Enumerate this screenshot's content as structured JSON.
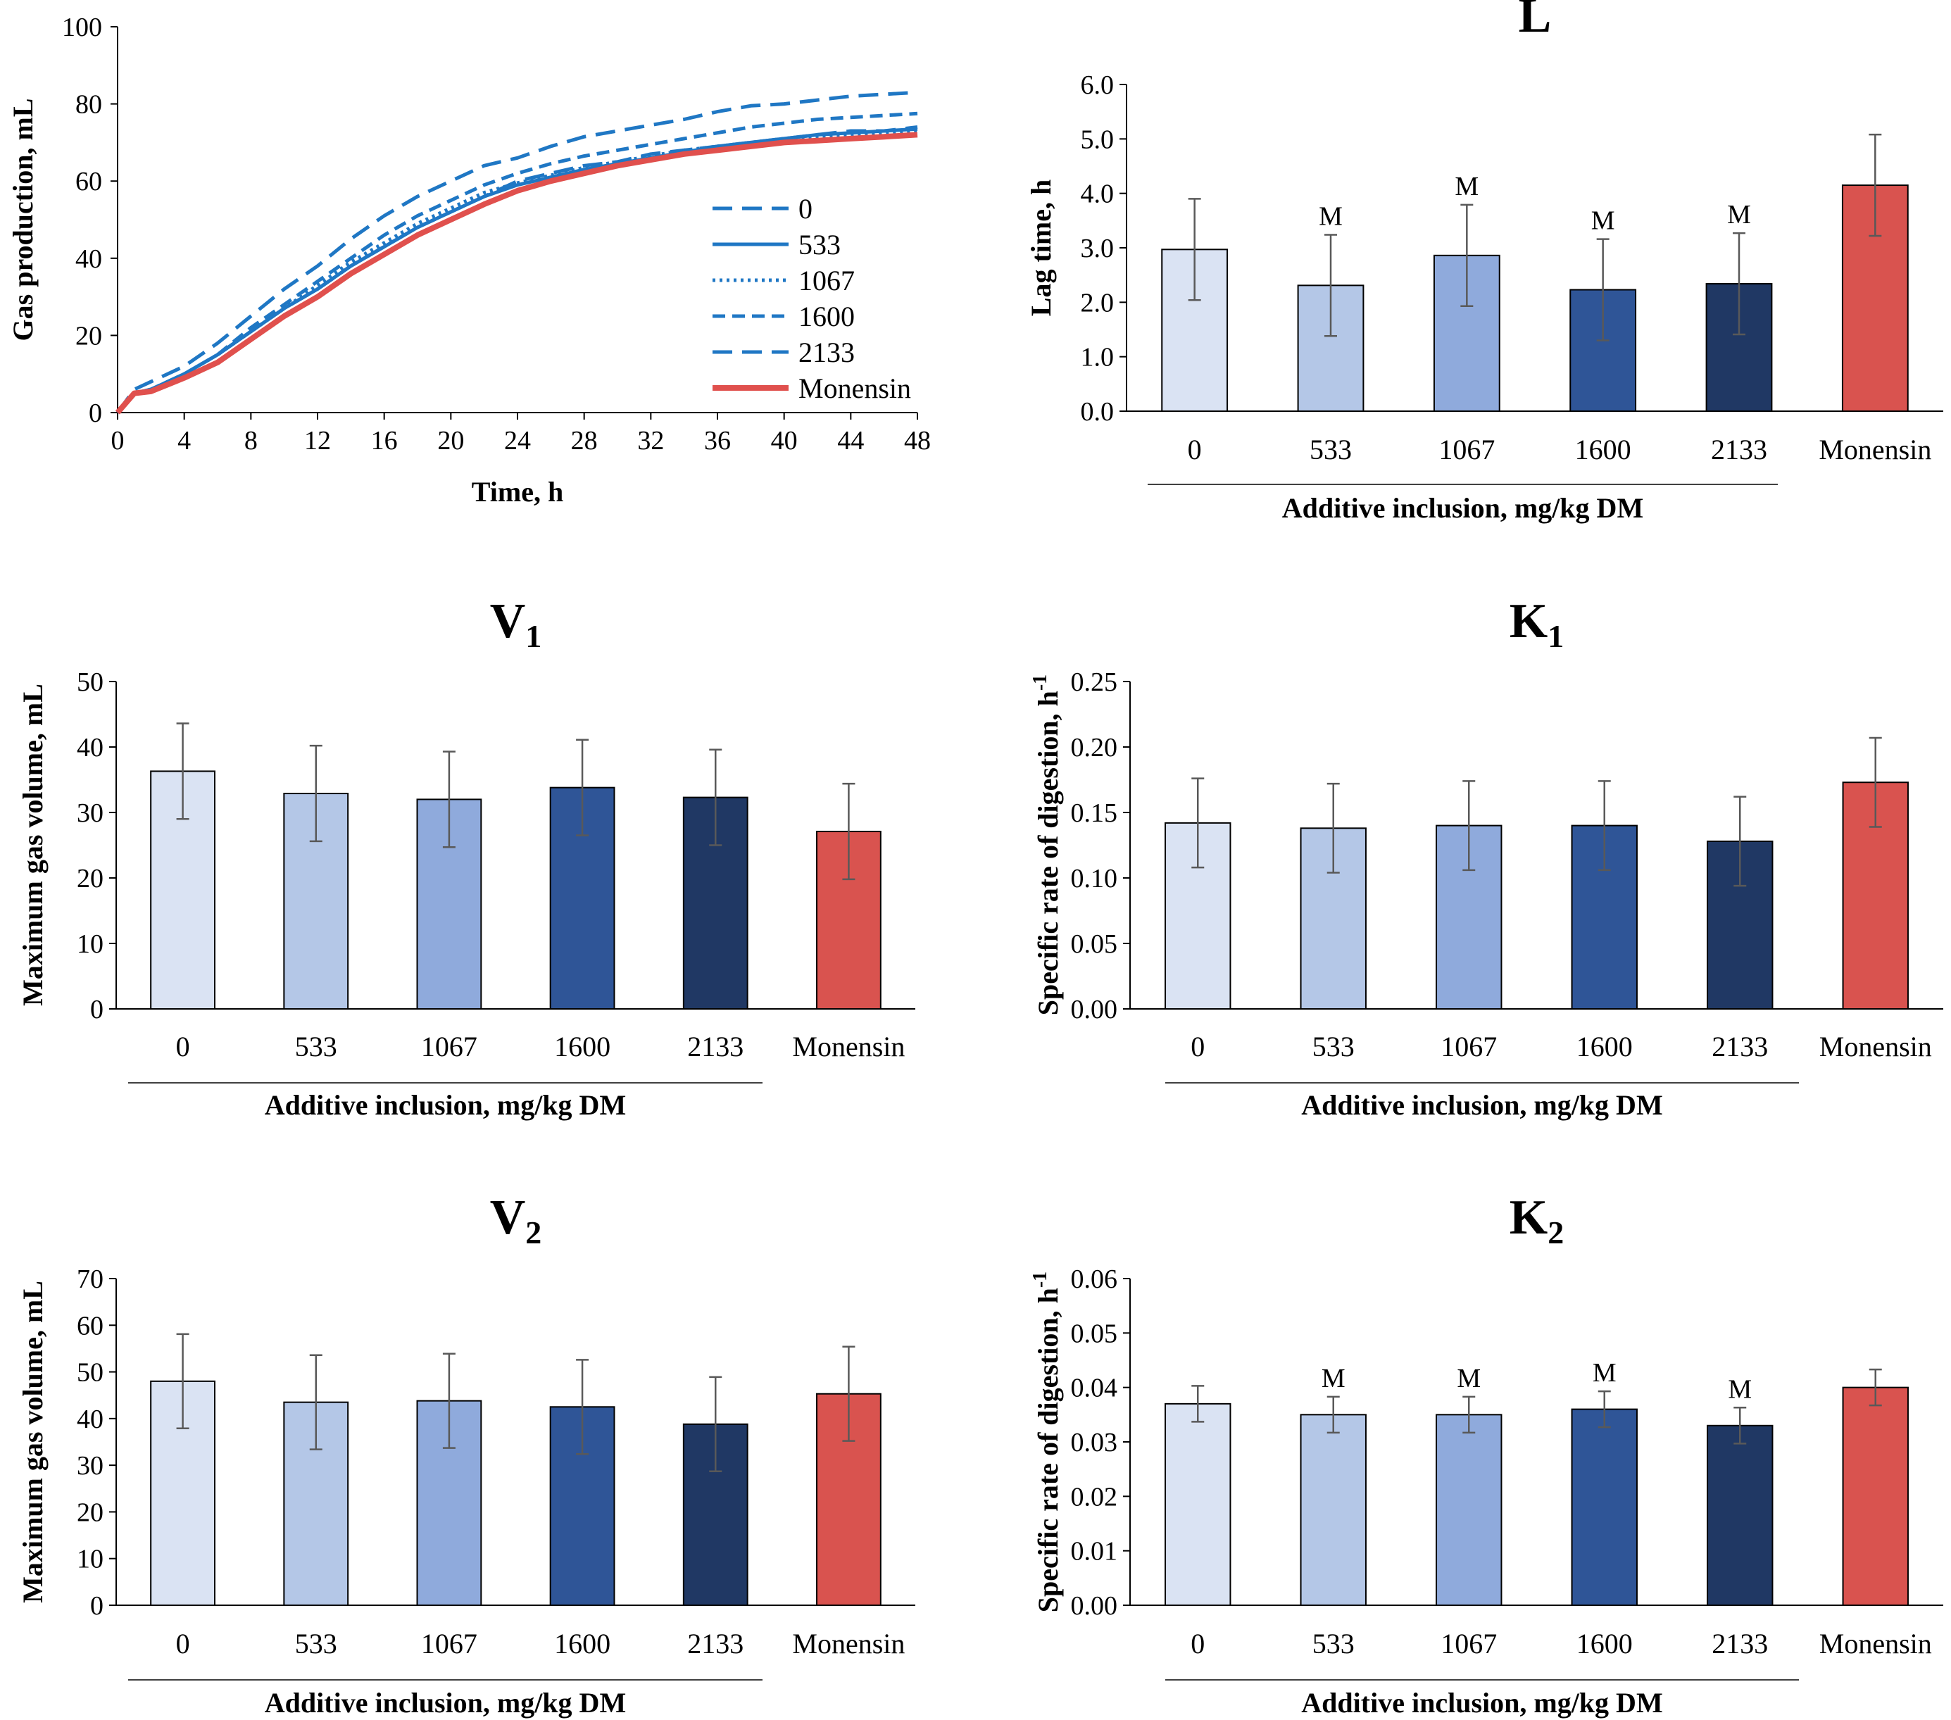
{
  "colors": {
    "c0": "#DAE3F3",
    "c533": "#B4C7E7",
    "c1067": "#8FAADC",
    "c1600": "#2F5597",
    "c2133": "#203864",
    "monensin": "#D9534F",
    "line_blue": "#1F77C4",
    "line_red": "#E0504D",
    "errbar": "#595959"
  },
  "chart_data": [
    {
      "id": "gas",
      "type": "line",
      "title": "",
      "xlabel": "Time, h",
      "ylabel": "Gas production, mL",
      "xlim": [
        0,
        48
      ],
      "ylim": [
        0,
        100
      ],
      "xticks": [
        "0",
        "4",
        "8",
        "12",
        "16",
        "20",
        "24",
        "28",
        "32",
        "36",
        "40",
        "44",
        "48"
      ],
      "yticks": [
        "0",
        "20",
        "40",
        "60",
        "80",
        "100"
      ],
      "legend": [
        "0",
        "533",
        "1067",
        "1600",
        "2133",
        "Monensin"
      ],
      "series": [
        {
          "name": "0",
          "style": "longdash",
          "color": "blue",
          "x": [
            0,
            1,
            2,
            4,
            6,
            8,
            10,
            12,
            14,
            16,
            18,
            20,
            22,
            24,
            26,
            28,
            30,
            32,
            34,
            36,
            38,
            40,
            42,
            44,
            46,
            48
          ],
          "y": [
            0,
            5,
            6,
            10,
            15,
            21,
            27,
            32,
            38,
            43,
            48,
            52,
            56,
            60,
            62,
            64,
            65,
            67,
            68,
            69,
            70,
            71,
            72,
            73,
            73,
            74
          ]
        },
        {
          "name": "533",
          "style": "solid",
          "color": "blue",
          "x": [
            0,
            1,
            2,
            4,
            6,
            8,
            10,
            12,
            14,
            16,
            18,
            20,
            22,
            24,
            26,
            28,
            30,
            32,
            34,
            36,
            38,
            40,
            42,
            44,
            46,
            48
          ],
          "y": [
            0,
            5,
            6,
            10,
            15,
            21,
            27,
            32,
            38,
            43,
            48,
            52,
            56,
            59,
            61,
            63,
            64.5,
            66,
            67.5,
            69,
            70,
            71,
            72,
            72.5,
            73,
            73.5
          ]
        },
        {
          "name": "1067",
          "style": "dotted",
          "color": "blue",
          "x": [
            0,
            1,
            2,
            4,
            6,
            8,
            10,
            12,
            14,
            16,
            18,
            20,
            22,
            24,
            26,
            28,
            30,
            32,
            34,
            36,
            38,
            40,
            42,
            44,
            46,
            48
          ],
          "y": [
            0,
            5,
            6,
            10,
            15,
            21,
            27,
            33,
            39,
            44,
            49,
            53,
            57,
            59.5,
            61.5,
            63.5,
            65,
            66.5,
            68,
            69,
            70,
            71,
            71.5,
            72,
            72.5,
            73
          ]
        },
        {
          "name": "1600",
          "style": "dash",
          "color": "blue",
          "x": [
            0,
            1,
            2,
            4,
            6,
            8,
            10,
            12,
            14,
            16,
            18,
            20,
            22,
            24,
            26,
            28,
            30,
            32,
            34,
            36,
            38,
            40,
            42,
            44,
            46,
            48
          ],
          "y": [
            0,
            5,
            6,
            10,
            15,
            22,
            28,
            34,
            40,
            46,
            51,
            55,
            59,
            62,
            64.5,
            66.5,
            68,
            69.5,
            71,
            72.5,
            74,
            75,
            76,
            76.5,
            77,
            77.5
          ]
        },
        {
          "name": "2133",
          "style": "longdash",
          "color": "blue",
          "x": [
            0,
            1,
            2,
            4,
            6,
            8,
            10,
            12,
            14,
            16,
            18,
            20,
            22,
            24,
            26,
            28,
            30,
            32,
            34,
            36,
            38,
            40,
            42,
            44,
            46,
            48
          ],
          "y": [
            0,
            6,
            8,
            12,
            18,
            25,
            32,
            38,
            45,
            51,
            56,
            60,
            64,
            66,
            69,
            71.5,
            73,
            74.5,
            76,
            78,
            79.5,
            80,
            81,
            82,
            82.5,
            83
          ]
        },
        {
          "name": "Monensin",
          "style": "solid-thick",
          "color": "red",
          "x": [
            0,
            1,
            2,
            4,
            6,
            8,
            10,
            12,
            14,
            16,
            18,
            20,
            22,
            24,
            26,
            28,
            30,
            32,
            34,
            36,
            38,
            40,
            42,
            44,
            46,
            48
          ],
          "y": [
            0,
            5,
            5.5,
            9,
            13,
            19,
            25,
            30,
            36,
            41,
            46,
            50,
            54,
            57.5,
            60,
            62,
            64,
            65.5,
            67,
            68,
            69,
            70,
            70.5,
            71,
            71.5,
            72
          ]
        }
      ]
    },
    {
      "id": "L",
      "type": "bar",
      "title": "L",
      "xlabel": "Additive inclusion, mg/kg DM",
      "ylabel": "Lag time, h",
      "ylim": [
        0,
        6
      ],
      "yticks": [
        "0.0",
        "1.0",
        "2.0",
        "3.0",
        "4.0",
        "5.0",
        "6.0"
      ],
      "categories": [
        "0",
        "533",
        "1067",
        "1600",
        "2133",
        "Monensin"
      ],
      "values": [
        2.97,
        2.31,
        2.86,
        2.23,
        2.34,
        4.15
      ],
      "errors": [
        0.93,
        0.93,
        0.93,
        0.93,
        0.93,
        0.93
      ],
      "annotations": [
        "",
        "M",
        "M",
        "M",
        "M",
        ""
      ]
    },
    {
      "id": "V1",
      "type": "bar",
      "title": "V",
      "title_sub": "1",
      "xlabel": "Additive inclusion, mg/kg DM",
      "ylabel": "Maximum gas volume, mL",
      "ylim": [
        0,
        50
      ],
      "yticks": [
        "0",
        "10",
        "20",
        "30",
        "40",
        "50"
      ],
      "categories": [
        "0",
        "533",
        "1067",
        "1600",
        "2133",
        "Monensin"
      ],
      "values": [
        36.3,
        32.9,
        32.0,
        33.8,
        32.3,
        27.1
      ],
      "errors": [
        7.3,
        7.3,
        7.3,
        7.3,
        7.3,
        7.3
      ],
      "annotations": [
        "",
        "",
        "",
        "",
        "",
        ""
      ]
    },
    {
      "id": "K1",
      "type": "bar",
      "title": "K",
      "title_sub": "1",
      "xlabel": "Additive inclusion, mg/kg DM",
      "ylabel": "Specific rate of digestion, h",
      "ylabel_sup": "-1",
      "ylim": [
        0,
        0.25
      ],
      "yticks": [
        "0.00",
        "0.05",
        "0.10",
        "0.15",
        "0.20",
        "0.25"
      ],
      "categories": [
        "0",
        "533",
        "1067",
        "1600",
        "2133",
        "Monensin"
      ],
      "values": [
        0.142,
        0.138,
        0.14,
        0.14,
        0.128,
        0.173
      ],
      "errors": [
        0.034,
        0.034,
        0.034,
        0.034,
        0.034,
        0.034
      ],
      "annotations": [
        "",
        "",
        "",
        "",
        "",
        ""
      ]
    },
    {
      "id": "V2",
      "type": "bar",
      "title": "V",
      "title_sub": "2",
      "xlabel": "Additive inclusion, mg/kg DM",
      "ylabel": "Maximum gas volume, mL",
      "ylim": [
        0,
        70
      ],
      "yticks": [
        "0",
        "10",
        "20",
        "30",
        "40",
        "50",
        "60",
        "70"
      ],
      "categories": [
        "0",
        "533",
        "1067",
        "1600",
        "2133",
        "Monensin"
      ],
      "values": [
        48.0,
        43.5,
        43.8,
        42.5,
        38.8,
        45.3
      ],
      "errors": [
        10.1,
        10.1,
        10.1,
        10.1,
        10.1,
        10.1
      ],
      "annotations": [
        "",
        "",
        "",
        "",
        "",
        ""
      ]
    },
    {
      "id": "K2",
      "type": "bar",
      "title": "K",
      "title_sub": "2",
      "xlabel": "Additive inclusion, mg/kg DM",
      "ylabel": "Specific rate of digestion, h",
      "ylabel_sup": "-1",
      "ylim": [
        0,
        0.06
      ],
      "yticks": [
        "0.00",
        "0.01",
        "0.02",
        "0.03",
        "0.04",
        "0.05",
        "0.06"
      ],
      "categories": [
        "0",
        "533",
        "1067",
        "1600",
        "2133",
        "Monensin"
      ],
      "values": [
        0.037,
        0.035,
        0.035,
        0.036,
        0.033,
        0.04
      ],
      "errors": [
        0.0033,
        0.0033,
        0.0033,
        0.0033,
        0.0033,
        0.0033
      ],
      "annotations": [
        "",
        "M",
        "M",
        "M",
        "M",
        ""
      ]
    }
  ]
}
